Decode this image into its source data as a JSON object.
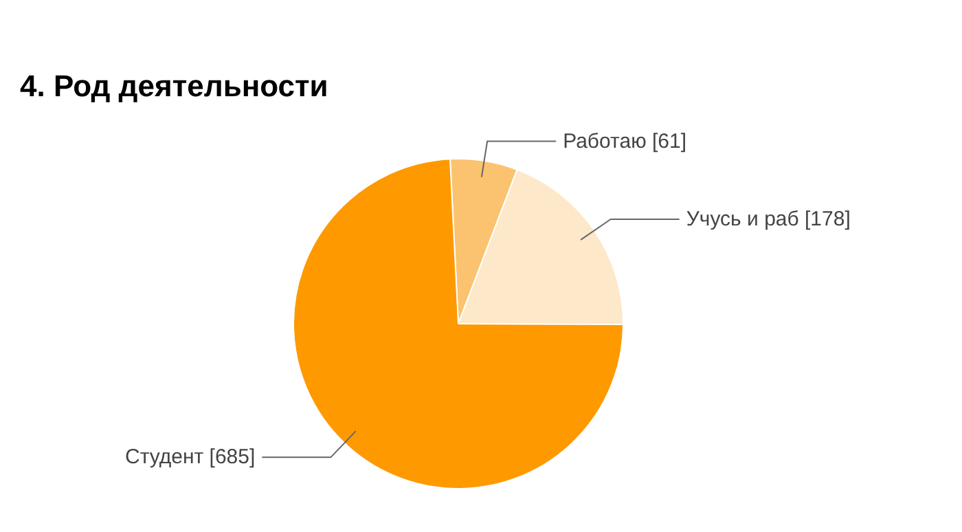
{
  "chart_data": {
    "type": "pie",
    "title": "4. Род деятельности",
    "categories": [
      "Работаю [61]",
      "Учусь и раб [178]",
      "Студент [685]"
    ],
    "values": [
      61,
      178,
      685
    ],
    "colors": [
      "#fbc36f",
      "#fde8c9",
      "#ff9900"
    ]
  }
}
